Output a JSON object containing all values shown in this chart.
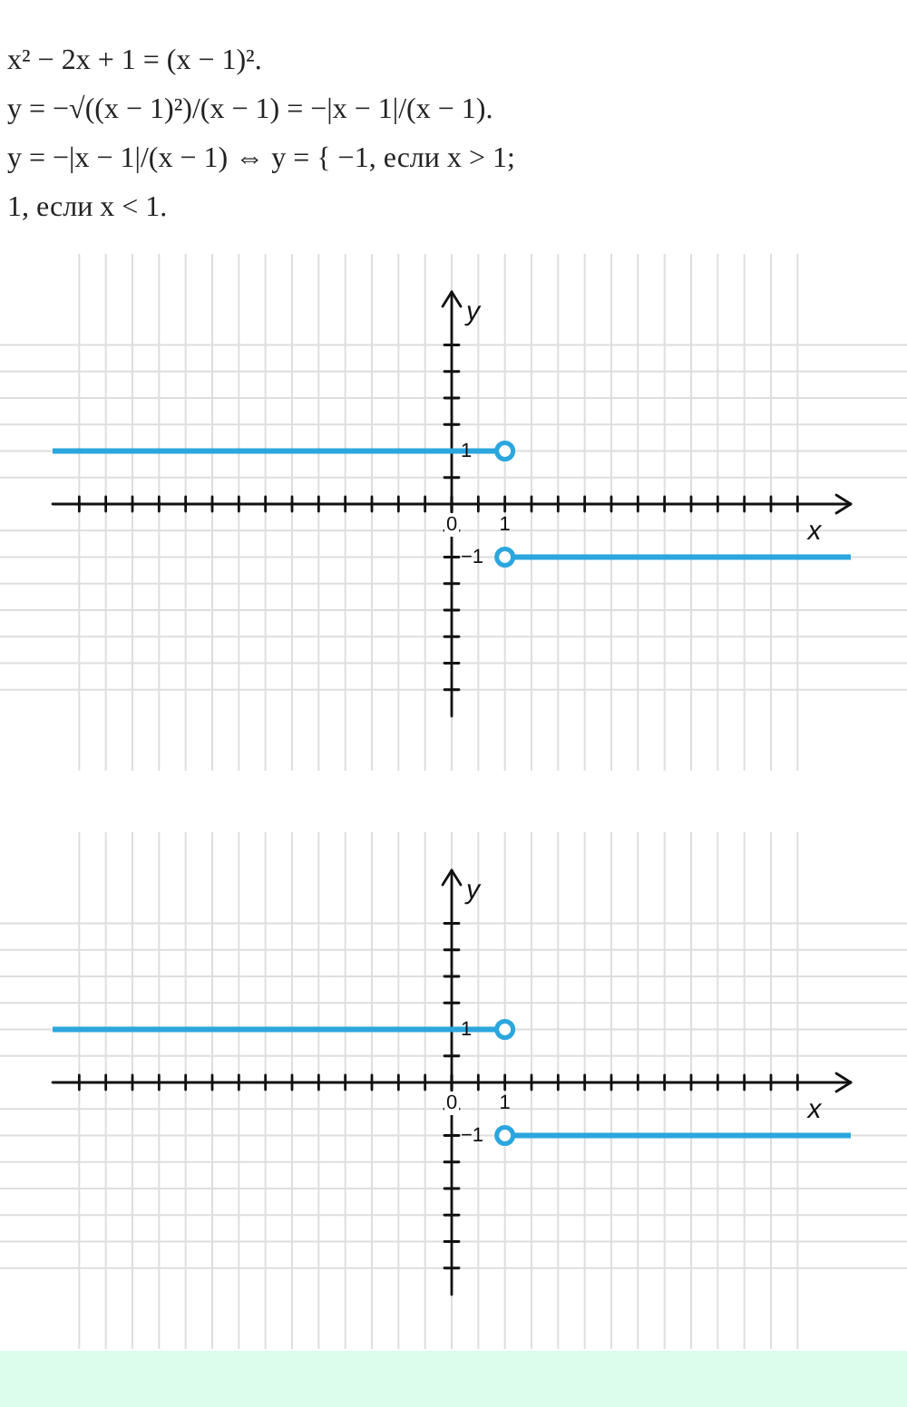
{
  "chart_data": [
    {
      "type": "line",
      "annotations": [
        "x² − 2x + 1 = (x − 1)².",
        "y = −√((x − 1)²)/(x − 1) = −|x − 1|/(x − 1).",
        "y = −|x − 1|/(x − 1) ⇔ y = { −1, если x > 1;",
        "1, если x < 1."
      ],
      "xlabel": "x",
      "ylabel": "y",
      "xlim": [
        -7.5,
        7.5
      ],
      "ylim": [
        -4,
        4
      ],
      "xticks": [
        {
          "value": -7,
          "label": null
        },
        {
          "value": -6.5,
          "label": null
        },
        {
          "value": -6,
          "label": null
        },
        {
          "value": -5.5,
          "label": null
        },
        {
          "value": -5,
          "label": null
        },
        {
          "value": -4.5,
          "label": null
        },
        {
          "value": -4,
          "label": null
        },
        {
          "value": -3.5,
          "label": null
        },
        {
          "value": -3,
          "label": null
        },
        {
          "value": -2.5,
          "label": null
        },
        {
          "value": -2,
          "label": null
        },
        {
          "value": -1.5,
          "label": null
        },
        {
          "value": -1,
          "label": null
        },
        {
          "value": -0.5,
          "label": null
        },
        {
          "value": 0,
          "label": "0"
        },
        {
          "value": 0.5,
          "label": null
        },
        1,
        {
          "value": 1.5,
          "label": null
        },
        {
          "value": 2,
          "label": null
        },
        {
          "value": 2.5,
          "label": null
        },
        {
          "value": 3,
          "label": null
        },
        {
          "value": 3.5,
          "label": null
        },
        {
          "value": 4,
          "label": null
        },
        {
          "value": 4.5,
          "label": null
        },
        {
          "value": 5,
          "label": null
        },
        {
          "value": 5.5,
          "label": null
        },
        {
          "value": 6,
          "label": null
        },
        {
          "value": 6.5,
          "label": null
        }
      ],
      "yticks": [
        {
          "value": -3.5,
          "label": null
        },
        {
          "value": -3,
          "label": null
        },
        {
          "value": -2.5,
          "label": null
        },
        {
          "value": -2,
          "label": null
        },
        {
          "value": -1.5,
          "label": null
        },
        {
          "value": -1,
          "label": "−1"
        },
        {
          "value": -0.5,
          "label": null
        },
        {
          "value": 0.5,
          "label": null
        },
        1,
        {
          "value": 1.5,
          "label": null
        },
        {
          "value": 2,
          "label": null
        },
        {
          "value": 2.5,
          "label": null
        },
        {
          "value": 3,
          "label": null
        }
      ],
      "grid": true,
      "series": [
        {
          "color": "#2ba6de",
          "x": [
            -7.5,
            1
          ],
          "values": [
            1,
            1
          ]
        },
        {
          "color": "#2ba6de",
          "x": [
            1,
            7.5
          ],
          "values": [
            -1,
            -1
          ]
        },
        {
          "type": "scatter",
          "color": "#2ba6de",
          "x": [
            1,
            1
          ],
          "values": [
            1,
            -1
          ]
        }
      ]
    },
    {
      "type": "line",
      "xlabel": "x",
      "ylabel": "y",
      "xlim": [
        -7.5,
        7.5
      ],
      "ylim": [
        -4,
        4
      ],
      "xticks": [
        {
          "value": -7,
          "label": null
        },
        {
          "value": -6.5,
          "label": null
        },
        {
          "value": -6,
          "label": null
        },
        {
          "value": -5.5,
          "label": null
        },
        {
          "value": -5,
          "label": null
        },
        {
          "value": -4.5,
          "label": null
        },
        {
          "value": -4,
          "label": null
        },
        {
          "value": -3.5,
          "label": null
        },
        {
          "value": -3,
          "label": null
        },
        {
          "value": -2.5,
          "label": null
        },
        {
          "value": -2,
          "label": null
        },
        {
          "value": -1.5,
          "label": null
        },
        {
          "value": -1,
          "label": null
        },
        {
          "value": -0.5,
          "label": null
        },
        {
          "value": 0,
          "label": "0"
        },
        {
          "value": 0.5,
          "label": null
        },
        1,
        {
          "value": 1.5,
          "label": null
        },
        {
          "value": 2,
          "label": null
        },
        {
          "value": 2.5,
          "label": null
        },
        {
          "value": 3,
          "label": null
        },
        {
          "value": 3.5,
          "label": null
        },
        {
          "value": 4,
          "label": null
        },
        {
          "value": 4.5,
          "label": null
        },
        {
          "value": 5,
          "label": null
        },
        {
          "value": 5.5,
          "label": null
        },
        {
          "value": 6,
          "label": null
        },
        {
          "value": 6.5,
          "label": null
        }
      ],
      "yticks": [
        {
          "value": -3.5,
          "label": null
        },
        {
          "value": -3,
          "label": null
        },
        {
          "value": -2.5,
          "label": null
        },
        {
          "value": -2,
          "label": null
        },
        {
          "value": -1.5,
          "label": null
        },
        {
          "value": -1,
          "label": "−1"
        },
        {
          "value": -0.5,
          "label": null
        },
        {
          "value": 0.5,
          "label": null
        },
        1,
        {
          "value": 1.5,
          "label": null
        },
        {
          "value": 2,
          "label": null
        },
        {
          "value": 2.5,
          "label": null
        },
        {
          "value": 3,
          "label": null
        }
      ],
      "grid": true,
      "series": [
        {
          "color": "#2ba6de",
          "x": [
            -7.5,
            1
          ],
          "values": [
            1,
            1
          ]
        },
        {
          "color": "#2ba6de",
          "x": [
            1,
            7.5
          ],
          "values": [
            -1,
            -1
          ]
        },
        {
          "type": "scatter",
          "color": "#2ba6de",
          "x": [
            1,
            1
          ],
          "values": [
            1,
            -1
          ]
        }
      ]
    }
  ]
}
